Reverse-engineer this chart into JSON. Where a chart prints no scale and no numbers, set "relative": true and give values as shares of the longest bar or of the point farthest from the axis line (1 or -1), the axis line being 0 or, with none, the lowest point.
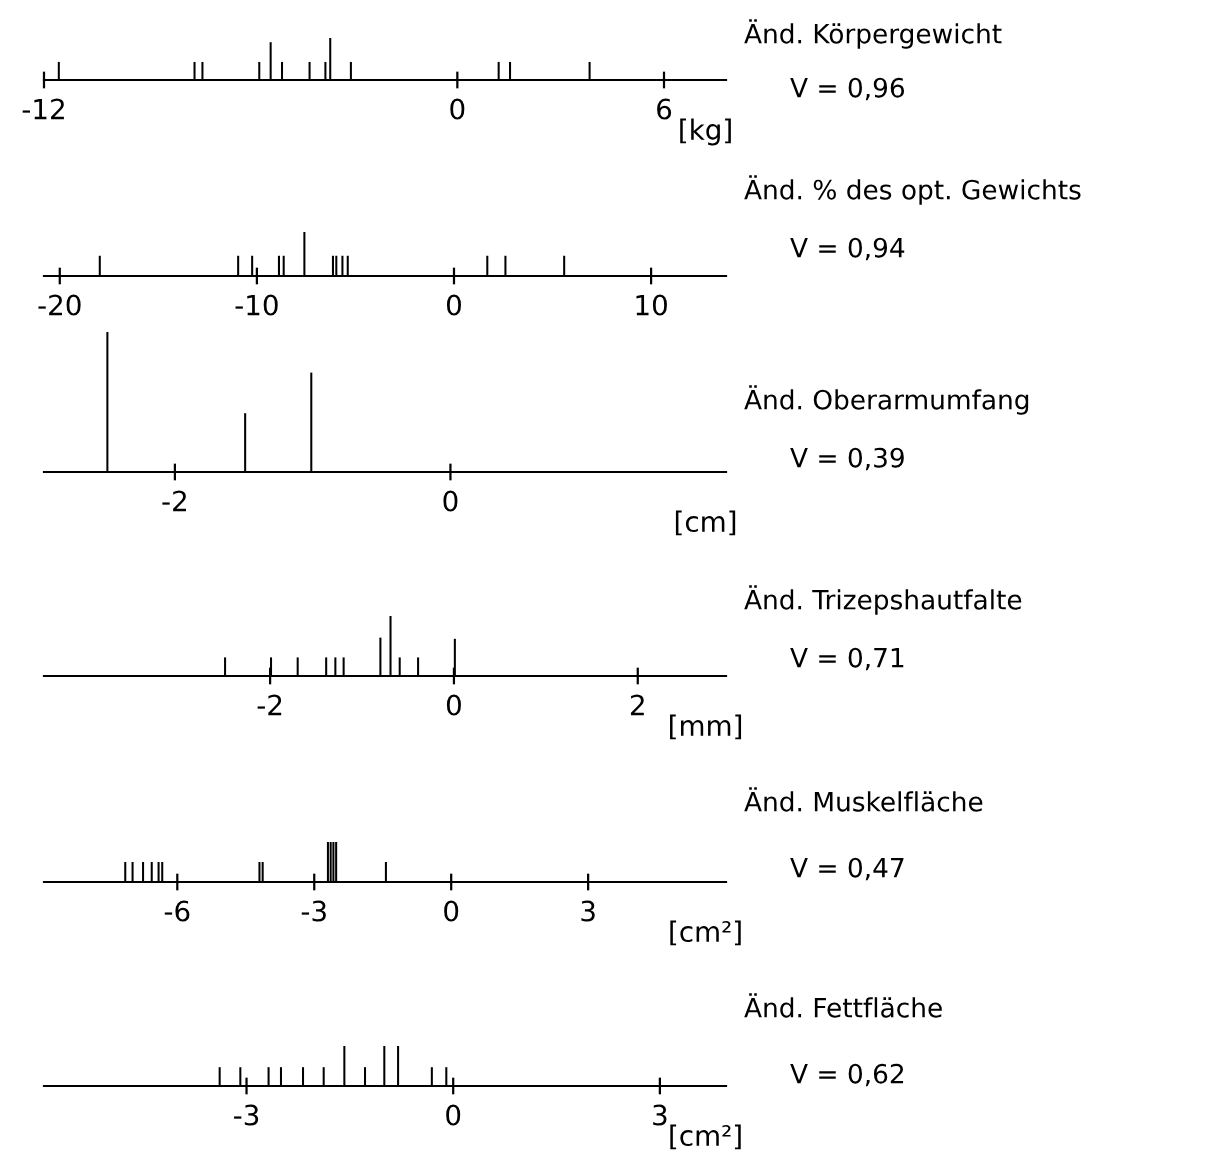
{
  "chart_data": [
    {
      "type": "bar",
      "annotations": [
        "Änd. Körpergewicht",
        "V = 0,96"
      ],
      "xlabel": "[kg]",
      "relative": true,
      "color": "#000000",
      "tick_labels": "x",
      "grid": false,
      "legend": false,
      "xlim": [
        -12,
        7.8
      ],
      "xticks": [
        -12,
        0,
        6
      ],
      "x": [
        -11.57,
        -7.63,
        -7.4,
        -5.75,
        -5.42,
        -5.09,
        -4.29,
        -3.83,
        -3.69,
        -3.09,
        1.2,
        1.53,
        3.84
      ],
      "values": [
        0.43,
        0.43,
        0.43,
        0.43,
        0.9,
        0.43,
        0.43,
        0.43,
        1,
        0.43,
        0.43,
        0.43,
        0.43
      ]
    },
    {
      "type": "bar",
      "annotations": [
        "Änd. % des opt. Gewichts",
        "V = 0,94"
      ],
      "relative": true,
      "color": "#000000",
      "tick_labels": "x",
      "grid": false,
      "legend": false,
      "xlim": [
        -20.8,
        13.8
      ],
      "xticks": [
        -20,
        -10,
        0,
        10
      ],
      "x": [
        -17.97,
        -10.95,
        -10.24,
        -8.88,
        -8.64,
        -7.59,
        -6.14,
        -5.97,
        -5.66,
        -5.39,
        1.69,
        2.61,
        5.59
      ],
      "values": [
        0.46,
        0.46,
        0.46,
        0.46,
        0.46,
        1,
        0.46,
        0.46,
        0.46,
        0.46,
        0.46,
        0.46,
        0.46
      ]
    },
    {
      "type": "bar",
      "annotations": [
        "Änd. Oberarmumfang",
        "V = 0,39"
      ],
      "xlabel": "[cm]",
      "relative": true,
      "color": "#000000",
      "tick_labels": "x",
      "grid": false,
      "legend": false,
      "xlim": [
        -2.95,
        2
      ],
      "xticks": [
        -2,
        0
      ],
      "x": [
        -2.49,
        -1.49,
        -1.01
      ],
      "values": [
        1,
        0.42,
        0.71
      ]
    },
    {
      "type": "bar",
      "annotations": [
        "Änd. Trizepshautfalte",
        "V = 0,71"
      ],
      "xlabel": "[mm]",
      "relative": true,
      "color": "#000000",
      "tick_labels": "x",
      "grid": false,
      "legend": false,
      "xlim": [
        -4.46,
        2.96
      ],
      "xticks": [
        -2,
        0,
        2
      ],
      "x": [
        -2.49,
        -1.99,
        -1.7,
        -1.39,
        -1.29,
        -1.2,
        -0.8,
        -0.69,
        -0.59,
        -0.39,
        0.01
      ],
      "values": [
        0.31,
        0.31,
        0.31,
        0.31,
        0.31,
        0.31,
        0.64,
        1,
        0.31,
        0.31,
        0.62
      ]
    },
    {
      "type": "bar",
      "annotations": [
        "Änd. Muskelfläche",
        "V = 0,47"
      ],
      "xlabel": "[cm²]",
      "relative": true,
      "color": "#000000",
      "tick_labels": "x",
      "grid": false,
      "legend": false,
      "xlim": [
        -8.92,
        6.02
      ],
      "xticks": [
        -6,
        -3,
        0,
        3
      ],
      "x": [
        -7.14,
        -6.98,
        -6.75,
        -6.56,
        -6.41,
        -6.33,
        -4.2,
        -4.13,
        -2.7,
        -2.64,
        -2.58,
        -2.52,
        -1.43
      ],
      "values": [
        0.5,
        0.5,
        0.5,
        0.5,
        0.5,
        0.5,
        0.5,
        0.5,
        1,
        1,
        1,
        1,
        0.5
      ]
    },
    {
      "type": "bar",
      "annotations": [
        "Änd. Fettfläche",
        "V = 0,62"
      ],
      "xlabel": "[cm²]",
      "relative": true,
      "color": "#000000",
      "tick_labels": "x",
      "grid": false,
      "legend": false,
      "xlim": [
        -5.94,
        3.96
      ],
      "xticks": [
        -3,
        0,
        3
      ],
      "x": [
        -3.39,
        -3.09,
        -2.68,
        -2.5,
        -2.18,
        -1.88,
        -1.58,
        -1.28,
        -1.0,
        -0.8,
        -0.31,
        -0.1
      ],
      "values": [
        0.47,
        0.47,
        0.47,
        0.47,
        0.47,
        0.47,
        1,
        0.47,
        1,
        1,
        0.47,
        0.47
      ]
    }
  ]
}
